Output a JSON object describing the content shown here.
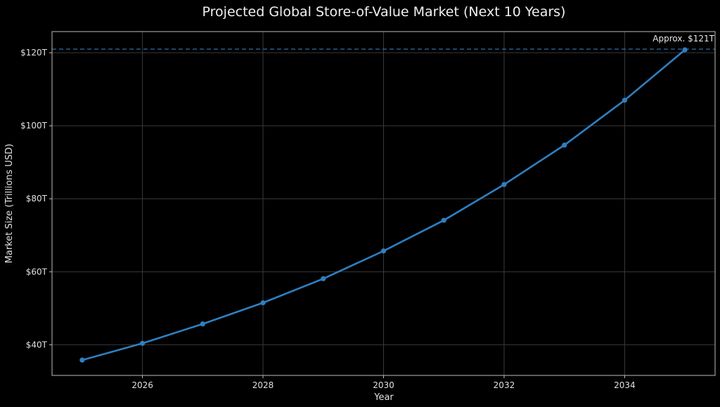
{
  "chart_data": {
    "type": "line",
    "title": "Projected Global Store-of-Value Market (Next 10 Years)",
    "xlabel": "Year",
    "ylabel": "Market Size (Trillions USD)",
    "x": [
      2025,
      2026,
      2027,
      2028,
      2029,
      2030,
      2031,
      2032,
      2033,
      2034,
      2035
    ],
    "series": [
      {
        "name": "Market Size",
        "color": "#2f7fc1",
        "values": [
          35.8,
          40.4,
          45.7,
          51.5,
          58.1,
          65.7,
          74.1,
          83.9,
          94.7,
          107.0,
          120.8
        ]
      }
    ],
    "xticks": [
      2026,
      2028,
      2030,
      2032,
      2034
    ],
    "yticks": [
      40,
      60,
      80,
      100,
      120
    ],
    "ytick_labels": [
      "$40T",
      "$60T",
      "$80T",
      "$100T",
      "$120T"
    ],
    "xlim": [
      2024.5,
      2035.5
    ],
    "ylim": [
      31.6,
      125.8
    ],
    "grid": true,
    "reference_line": {
      "y": 121,
      "style": "dashed",
      "color": "#2f6fa8"
    },
    "annotation": {
      "text": "Approx. $121T",
      "x": 2035,
      "y": 121
    },
    "legend": null,
    "background": "#000000"
  }
}
